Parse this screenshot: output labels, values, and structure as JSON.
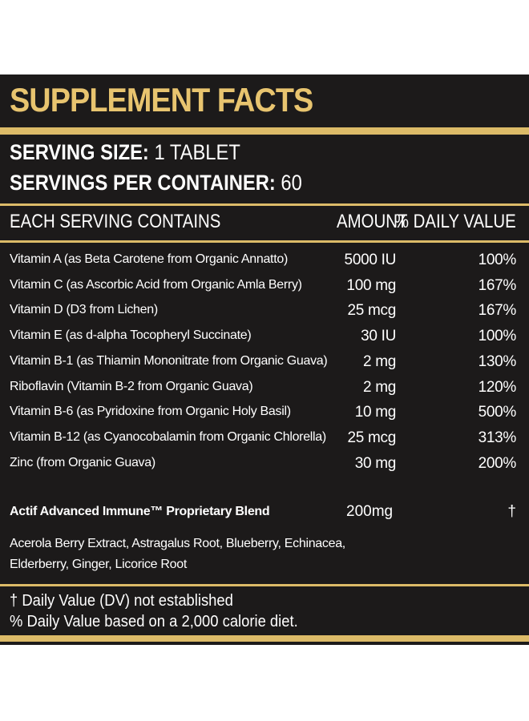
{
  "header": {
    "title": "SUPPLEMENT FACTS"
  },
  "serving_size": {
    "label": "SERVING SIZE:",
    "value": "1 TABLET"
  },
  "servings_per_container": {
    "label": "SERVINGS PER CONTAINER:",
    "value": "60"
  },
  "table": {
    "columns": [
      "EACH SERVING CONTAINS",
      "AMOUNT",
      "% DAILY VALUE"
    ],
    "rows": [
      [
        "Vitamin A (as Beta Carotene from Organic Annatto)",
        "5000 IU",
        "100%"
      ],
      [
        "Vitamin C (as Ascorbic Acid from Organic Amla Berry)",
        "100 mg",
        "167%"
      ],
      [
        "Vitamin D (D3 from Lichen)",
        "25 mcg",
        "167%"
      ],
      [
        "Vitamin E (as d-alpha Tocopheryl Succinate)",
        "30 IU",
        "100%"
      ],
      [
        "Vitamin B-1 (as Thiamin Mononitrate from Organic Guava)",
        "2 mg",
        "130%"
      ],
      [
        "Riboflavin (Vitamin B-2 from Organic Guava)",
        "2 mg",
        "120%"
      ],
      [
        "Vitamin B-6 (as Pyridoxine from Organic Holy Basil)",
        "10 mg",
        "500%"
      ],
      [
        "Vitamin B-12 (as Cyanocobalamin from Organic Chlorella)",
        "25 mcg",
        "313%"
      ],
      [
        "Zinc (from Organic Guava)",
        "30 mg",
        "200%"
      ]
    ],
    "blend": {
      "name": "Actif Advanced Immune™ Proprietary Blend",
      "amount": "200mg",
      "daily_value": "†",
      "ingredients": [
        "Acerola Berry Extract, Astragalus Root, Blueberry, Echinacea,",
        "Elderberry, Ginger, Licorice Root"
      ]
    }
  },
  "footnotes": [
    "† Daily Value (DV) not established",
    "% Daily Value based on a 2,000 calorie diet."
  ]
}
